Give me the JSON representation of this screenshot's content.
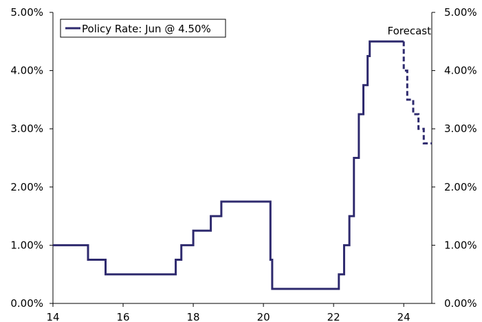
{
  "chart_data": {
    "type": "line",
    "title": "",
    "xlabel": "",
    "ylabel": "",
    "xlim": [
      14,
      24.8
    ],
    "ylim": [
      0,
      5
    ],
    "grid": false,
    "legend_placement": "top-left",
    "x_ticks": [
      14,
      16,
      18,
      20,
      22,
      24
    ],
    "x_tick_labels": [
      "14",
      "16",
      "18",
      "20",
      "22",
      "24"
    ],
    "y_ticks": [
      0,
      1,
      2,
      3,
      4,
      5
    ],
    "y_tick_labels": [
      "0.00%",
      "1.00%",
      "2.00%",
      "3.00%",
      "4.00%",
      "5.00%"
    ],
    "y_tick_labels_right": [
      "0.00%",
      "1.00%",
      "2.00%",
      "3.00%",
      "4.00%",
      "5.00%"
    ],
    "annotation": "Forecast",
    "series": [
      {
        "name": "Policy Rate: Jun @ 4.50%",
        "color": "#2e2a6e",
        "style": "solid",
        "x": [
          14.0,
          15.0,
          15.0,
          15.5,
          15.5,
          17.5,
          17.5,
          17.66,
          17.66,
          18.0,
          18.0,
          18.5,
          18.5,
          18.8,
          18.8,
          20.2,
          20.2,
          20.25,
          20.25,
          22.15,
          22.15,
          22.3,
          22.3,
          22.45,
          22.45,
          22.58,
          22.58,
          22.72,
          22.72,
          22.85,
          22.85,
          22.97,
          22.97,
          23.03,
          23.03,
          24.0
        ],
        "y": [
          1.0,
          1.0,
          0.75,
          0.75,
          0.5,
          0.5,
          0.75,
          0.75,
          1.0,
          1.0,
          1.25,
          1.25,
          1.5,
          1.5,
          1.75,
          1.75,
          0.75,
          0.75,
          0.25,
          0.25,
          0.5,
          0.5,
          1.0,
          1.0,
          1.5,
          1.5,
          2.5,
          2.5,
          3.25,
          3.25,
          3.75,
          3.75,
          4.25,
          4.25,
          4.5,
          4.5
        ]
      },
      {
        "name": "",
        "color": "#2e2a6e",
        "style": "dashed",
        "x": [
          24.0,
          24.0,
          24.1,
          24.1,
          24.27,
          24.27,
          24.42,
          24.42,
          24.57,
          24.57,
          24.8
        ],
        "y": [
          4.5,
          4.0,
          4.0,
          3.5,
          3.5,
          3.25,
          3.25,
          3.0,
          3.0,
          2.75,
          2.75
        ]
      }
    ]
  }
}
